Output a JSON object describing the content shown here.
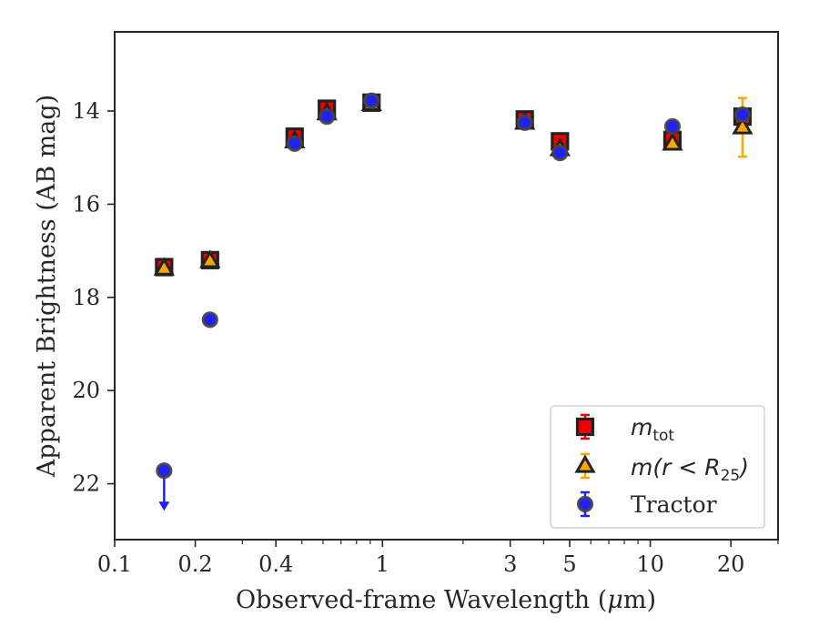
{
  "chart_data": {
    "type": "scatter",
    "xlabel_main": "Observed-frame Wavelength (",
    "xlabel_mu": "μ",
    "xlabel_end": "m)",
    "ylabel": "Apparent Brightness (AB mag)",
    "x_scale": "log",
    "y_inverted": true,
    "xlim": [
      0.1,
      30
    ],
    "ylim": [
      23.2,
      12.3
    ],
    "x_ticks": [
      {
        "value": 0.1,
        "label": "0.1"
      },
      {
        "value": 0.2,
        "label": "0.2"
      },
      {
        "value": 0.4,
        "label": "0.4"
      },
      {
        "value": 1,
        "label": "1"
      },
      {
        "value": 3,
        "label": "3"
      },
      {
        "value": 5,
        "label": "5"
      },
      {
        "value": 10,
        "label": "10"
      },
      {
        "value": 20,
        "label": "20"
      }
    ],
    "y_ticks": [
      {
        "value": 14,
        "label": "14"
      },
      {
        "value": 16,
        "label": "16"
      },
      {
        "value": 18,
        "label": "18"
      },
      {
        "value": 20,
        "label": "20"
      },
      {
        "value": 22,
        "label": "22"
      }
    ],
    "grid": false,
    "legend_position": "lower-right",
    "series": [
      {
        "name": "m_tot",
        "legend_main": "m",
        "legend_sub": "tot",
        "marker": "square",
        "color": "#ee0000",
        "edge": "#222222",
        "points": [
          {
            "x": 0.153,
            "y": 17.35,
            "err": 0.05
          },
          {
            "x": 0.227,
            "y": 17.2,
            "err": 0.05
          },
          {
            "x": 0.47,
            "y": 14.55,
            "err": 0.05
          },
          {
            "x": 0.62,
            "y": 13.95,
            "err": 0.05
          },
          {
            "x": 0.91,
            "y": 13.82,
            "err": 0.05
          },
          {
            "x": 3.4,
            "y": 14.18,
            "err": 0.05
          },
          {
            "x": 4.6,
            "y": 14.65,
            "err": 0.05
          },
          {
            "x": 12.1,
            "y": 14.62,
            "err": 0.05
          },
          {
            "x": 22.1,
            "y": 14.12,
            "err": 0.1
          }
        ]
      },
      {
        "name": "m(r < R25)",
        "legend_main": "m(r < R",
        "legend_sub": "25",
        "legend_end": ")",
        "marker": "triangle",
        "color": "#ffa500",
        "edge": "#222222",
        "points": [
          {
            "x": 0.153,
            "y": 17.38,
            "err": 0.05
          },
          {
            "x": 0.227,
            "y": 17.22,
            "err": 0.05
          },
          {
            "x": 0.47,
            "y": 14.65,
            "err": 0.05
          },
          {
            "x": 0.62,
            "y": 14.05,
            "err": 0.05
          },
          {
            "x": 0.91,
            "y": 13.85,
            "err": 0.05
          },
          {
            "x": 3.4,
            "y": 14.25,
            "err": 0.05
          },
          {
            "x": 4.6,
            "y": 14.82,
            "err": 0.05
          },
          {
            "x": 12.1,
            "y": 14.7,
            "err": 0.05
          },
          {
            "x": 22.1,
            "y": 14.35,
            "err": 0.63
          }
        ]
      },
      {
        "name": "Tractor",
        "legend_main": "Tractor",
        "marker": "circle",
        "color": "#1f1fff",
        "edge": "#444444",
        "points": [
          {
            "x": 0.153,
            "y": 21.72,
            "err": 0,
            "upper_limit": true
          },
          {
            "x": 0.227,
            "y": 18.48,
            "err": 0.05
          },
          {
            "x": 0.47,
            "y": 14.7,
            "err": 0.05
          },
          {
            "x": 0.62,
            "y": 14.12,
            "err": 0.05
          },
          {
            "x": 0.91,
            "y": 13.78,
            "err": 0.05
          },
          {
            "x": 3.4,
            "y": 14.25,
            "err": 0.05
          },
          {
            "x": 4.6,
            "y": 14.9,
            "err": 0.05
          },
          {
            "x": 12.1,
            "y": 14.33,
            "err": 0.05
          },
          {
            "x": 22.1,
            "y": 14.08,
            "err": 0.05
          }
        ]
      }
    ]
  }
}
